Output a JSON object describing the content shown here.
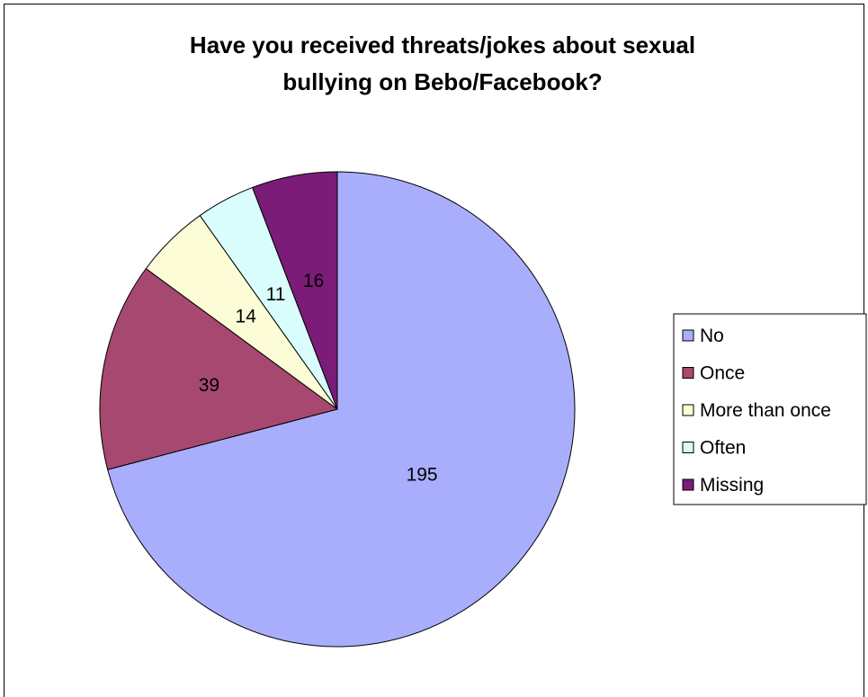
{
  "chart_data": {
    "type": "pie",
    "title_lines": [
      "Have you received threats/jokes about sexual",
      "bullying on Bebo/Facebook?"
    ],
    "categories": [
      "No",
      "Once",
      "More than once",
      "Often",
      "Missing"
    ],
    "values": [
      195,
      39,
      14,
      11,
      16
    ],
    "colors": [
      "#a9aefc",
      "#a6486f",
      "#fcfcd6",
      "#d9fcfc",
      "#7a1c78"
    ],
    "data_labels": true,
    "legend_position": "right",
    "start_angle_deg": 0,
    "direction": "clockwise"
  }
}
